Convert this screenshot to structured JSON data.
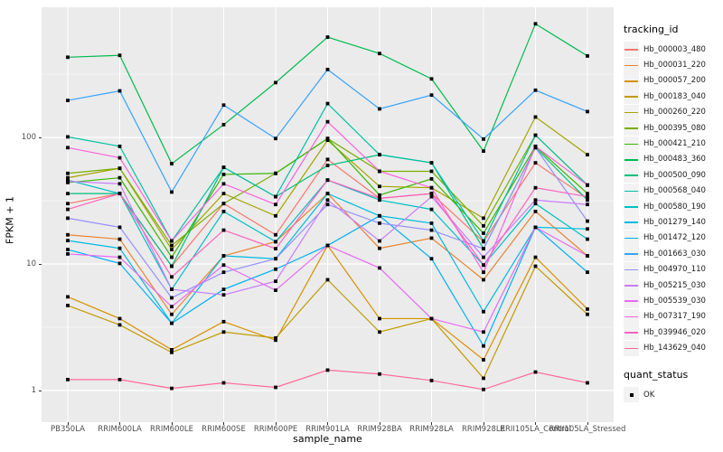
{
  "figure": {
    "legend": {
      "tracking_title": "tracking_id",
      "quant_title": "quant_status",
      "quant_label": "OK"
    }
  },
  "chart_data": {
    "type": "line",
    "log_y": true,
    "xlabel": "sample_name",
    "ylabel": "FPKM + 1",
    "y_ticks": [
      1,
      10,
      100
    ],
    "ylim": [
      1,
      1100
    ],
    "grid": "on",
    "legend_position": "right",
    "marker": "black-square",
    "categories": [
      "PB350LA",
      "RRIM600LA",
      "RRIM600LE",
      "RRIM600SE",
      "RRIM600PE",
      "RRIM901LA",
      "RRIM928BA",
      "RRIM928LA",
      "RRIM928LE",
      "RRII105LA_Control",
      "RRII105LA_Stressed"
    ],
    "series": [
      {
        "name": "Hb_000003_480",
        "color": "#F8766D",
        "values": [
          30,
          36,
          9.6,
          30,
          17,
          67,
          33,
          36,
          15,
          63,
          33
        ]
      },
      {
        "name": "Hb_000031_220",
        "color": "#EA8331",
        "values": [
          17,
          15.7,
          4.0,
          11.6,
          15,
          36,
          13.3,
          16,
          7.5,
          26,
          11.6
        ]
      },
      {
        "name": "Hb_000057_200",
        "color": "#D89000",
        "values": [
          5.5,
          3.7,
          2.1,
          3.5,
          2.5,
          14,
          3.7,
          3.7,
          1.75,
          11.3,
          4.4
        ]
      },
      {
        "name": "Hb_000183_040",
        "color": "#C09B00",
        "values": [
          4.7,
          3.3,
          2.0,
          2.9,
          2.6,
          7.5,
          2.9,
          3.7,
          1.25,
          9.6,
          4.0
        ]
      },
      {
        "name": "Hb_000260_220",
        "color": "#A3A500",
        "values": [
          48,
          57,
          13,
          36,
          24,
          95,
          41,
          40,
          23,
          145,
          73
        ]
      },
      {
        "name": "Hb_000395_080",
        "color": "#7CAE00",
        "values": [
          52,
          57,
          14,
          30,
          52,
          98,
          54,
          54,
          20,
          104,
          42
        ]
      },
      {
        "name": "Hb_000421_210",
        "color": "#39B600",
        "values": [
          44,
          48,
          11.3,
          51,
          52,
          98,
          35,
          47,
          17.5,
          85,
          36
        ]
      },
      {
        "name": "Hb_000483_360",
        "color": "#00BB4E",
        "values": [
          430,
          445,
          62,
          126,
          271,
          620,
          460,
          290,
          78,
          790,
          440
        ]
      },
      {
        "name": "Hb_000500_090",
        "color": "#00BF7D",
        "values": [
          36,
          36,
          9.6,
          58,
          34,
          60,
          73,
          63,
          13.2,
          83,
          32
        ]
      },
      {
        "name": "Hb_000568_040",
        "color": "#00C1A3",
        "values": [
          101,
          85,
          15.2,
          58,
          34,
          185,
          73,
          63,
          15.2,
          104,
          42
        ]
      },
      {
        "name": "Hb_000580_190",
        "color": "#00BFC4",
        "values": [
          46,
          36,
          6.3,
          26,
          15,
          46,
          32,
          27,
          9.8,
          30,
          15.7
        ]
      },
      {
        "name": "Hb_001279_140",
        "color": "#00BAE0",
        "values": [
          15.3,
          13.3,
          3.4,
          11.6,
          11,
          36,
          24,
          21,
          4.2,
          19.5,
          18.9
        ]
      },
      {
        "name": "Hb_001472_120",
        "color": "#00B0F6",
        "values": [
          13,
          10.1,
          3.4,
          6.3,
          9.1,
          14,
          24,
          11,
          2.25,
          19.5,
          8.6
        ]
      },
      {
        "name": "Hb_001663_030",
        "color": "#35A2FF",
        "values": [
          196,
          233,
          37,
          180,
          98,
          344,
          168,
          216,
          97,
          236,
          160
        ]
      },
      {
        "name": "Hb_004970_110",
        "color": "#9590FF",
        "values": [
          23,
          19.5,
          5.4,
          8.6,
          11,
          29.5,
          21,
          18.5,
          13.2,
          83,
          21.8
        ]
      },
      {
        "name": "Hb_005215_030",
        "color": "#C77CFF",
        "values": [
          45,
          43,
          6.3,
          5.7,
          7.3,
          32,
          15.2,
          34,
          11.3,
          32,
          29.5
        ]
      },
      {
        "name": "Hb_005539_030",
        "color": "#E76BF3",
        "values": [
          12,
          11.3,
          4.6,
          9.8,
          6.2,
          14,
          9.3,
          3.7,
          2.9,
          19.5,
          11.6
        ]
      },
      {
        "name": "Hb_007317_190",
        "color": "#FA62DB",
        "values": [
          83,
          69,
          15.2,
          43,
          29.5,
          133,
          54,
          40,
          8.6,
          85,
          42
        ]
      },
      {
        "name": "Hb_039946_020",
        "color": "#FF62BC",
        "values": [
          27,
          36,
          7.9,
          18.5,
          13.2,
          46,
          33,
          36,
          9.8,
          40,
          34
        ]
      },
      {
        "name": "Hb_143629_040",
        "color": "#FF6A98",
        "values": [
          1.22,
          1.22,
          1.04,
          1.15,
          1.06,
          1.45,
          1.35,
          1.2,
          1.02,
          1.4,
          1.15
        ]
      }
    ],
    "panel_bg": "#EBEBEB",
    "grid_color": "#FFFFFF",
    "tick_label_color": "#4D4D4D"
  }
}
